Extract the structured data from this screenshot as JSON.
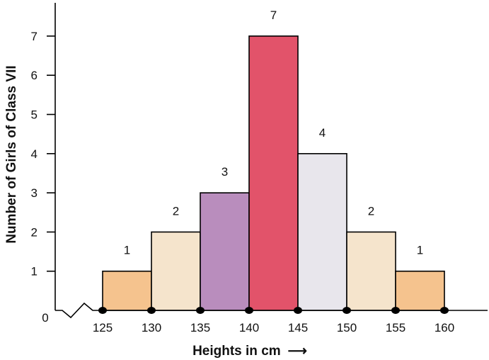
{
  "chart_data": {
    "type": "bar",
    "subtype": "histogram",
    "bins": [
      {
        "from": 125,
        "to": 130,
        "value": 1,
        "color": "#f5c38e"
      },
      {
        "from": 130,
        "to": 135,
        "value": 2,
        "color": "#f5e4cc"
      },
      {
        "from": 135,
        "to": 140,
        "value": 3,
        "color": "#b98dbd"
      },
      {
        "from": 140,
        "to": 145,
        "value": 7,
        "color": "#e2536a"
      },
      {
        "from": 145,
        "to": 150,
        "value": 4,
        "color": "#e8e6ec"
      },
      {
        "from": 150,
        "to": 155,
        "value": 2,
        "color": "#f5e4cc"
      },
      {
        "from": 155,
        "to": 160,
        "value": 1,
        "color": "#f5c38e"
      }
    ],
    "x_ticks": [
      "125",
      "130",
      "135",
      "140",
      "145",
      "150",
      "155",
      "160"
    ],
    "x_tick_values": [
      125,
      130,
      135,
      140,
      145,
      150,
      155,
      160
    ],
    "y_ticks": [
      "1",
      "2",
      "3",
      "4",
      "5",
      "6",
      "7"
    ],
    "y_tick_values": [
      1,
      2,
      3,
      4,
      5,
      6,
      7
    ],
    "origin_label": "0",
    "xlabel": "Heights in cm",
    "xlabel_arrow": "⟶",
    "ylabel": "Number of Girls of Class VII",
    "ylim": [
      0,
      7.8
    ],
    "xlim": [
      125,
      160
    ],
    "x_axis_break": true,
    "grid": false,
    "data_labels": true
  }
}
